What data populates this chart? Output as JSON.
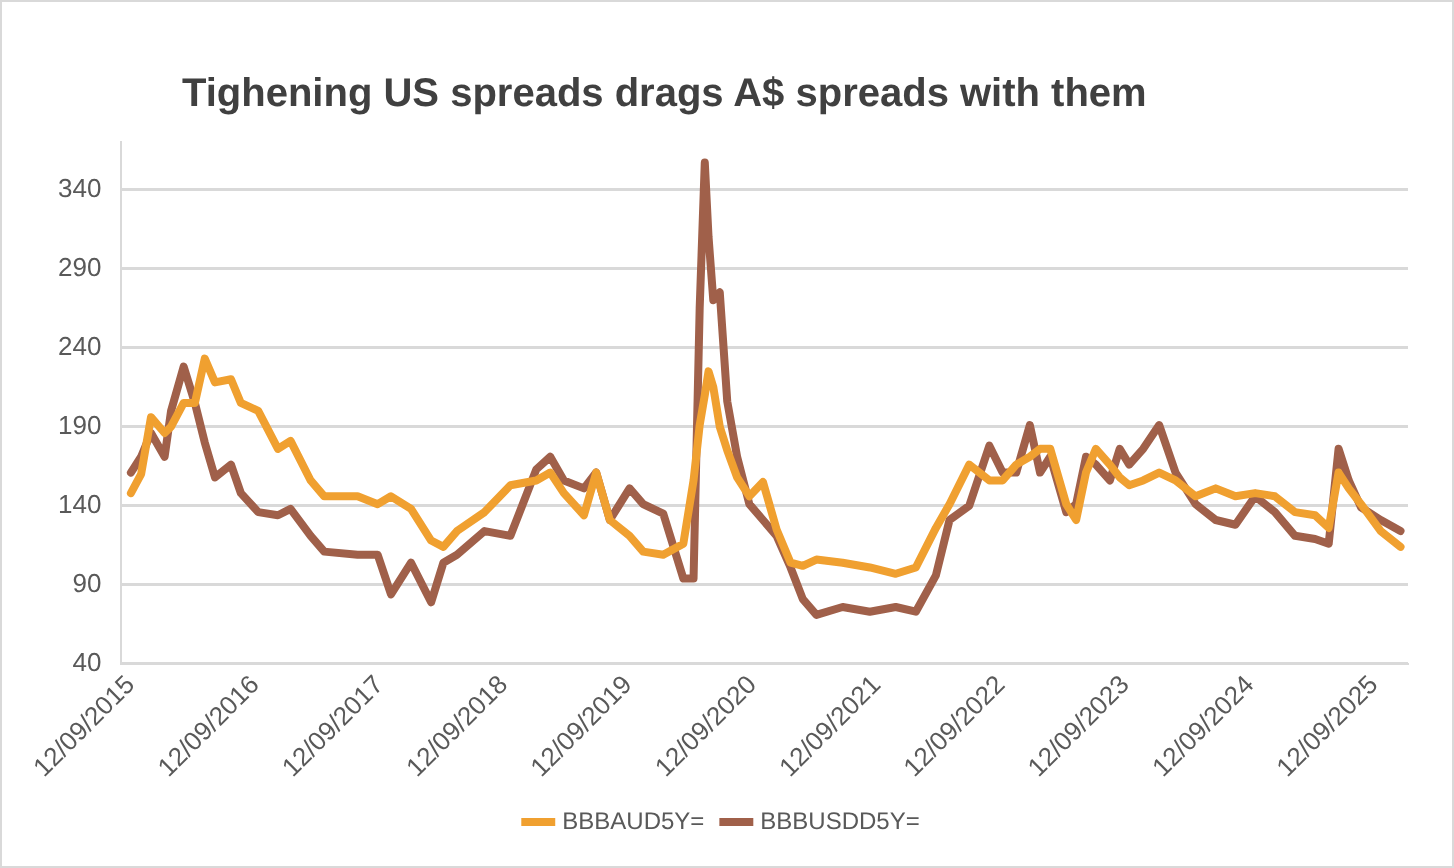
{
  "chart_data": {
    "type": "line",
    "title": "Tighening US spreads drags A$ spreads with them",
    "x": [
      "2015-09-12",
      "2015-10-12",
      "2015-11-10",
      "2015-12-20",
      "2016-01-08",
      "2016-02-14",
      "2016-03-18",
      "2016-04-16",
      "2016-05-16",
      "2016-07-02",
      "2016-07-31",
      "2016-09-20",
      "2016-11-17",
      "2016-12-24",
      "2017-02-21",
      "2017-04-02",
      "2017-07-09",
      "2017-09-06",
      "2017-10-15",
      "2017-12-13",
      "2018-02-10",
      "2018-03-18",
      "2018-04-27",
      "2018-07-17",
      "2018-10-01",
      "2018-12-16",
      "2019-01-26",
      "2019-03-07",
      "2019-05-05",
      "2019-06-10",
      "2019-07-20",
      "2019-09-16",
      "2019-10-26",
      "2019-12-24",
      "2020-02-21",
      "2020-03-22",
      "2020-04-09",
      "2020-04-24",
      "2020-05-05",
      "2020-05-19",
      "2020-06-07",
      "2020-06-29",
      "2020-07-28",
      "2020-09-02",
      "2020-10-12",
      "2020-11-21",
      "2021-01-01",
      "2021-02-06",
      "2021-03-18",
      "2021-06-03",
      "2021-08-22",
      "2021-11-06",
      "2022-01-04",
      "2022-03-04",
      "2022-04-13",
      "2022-06-10",
      "2022-08-08",
      "2022-09-16",
      "2022-10-26",
      "2022-12-05",
      "2023-01-04",
      "2023-02-03",
      "2023-03-22",
      "2023-04-20",
      "2023-05-19",
      "2023-06-17",
      "2023-07-28",
      "2023-08-26",
      "2023-09-23",
      "2023-11-03",
      "2023-12-20",
      "2024-02-06",
      "2024-04-05",
      "2024-06-03",
      "2024-07-31",
      "2024-09-27",
      "2024-11-24",
      "2025-01-22",
      "2025-03-22",
      "2025-05-01",
      "2025-05-30",
      "2025-06-29",
      "2025-08-04",
      "2025-10-01",
      "2025-11-28"
    ],
    "series": [
      {
        "name": "BBBAUD5Y=",
        "color": "#f0a030",
        "values": [
          148,
          160,
          196,
          186,
          190,
          205,
          205,
          233,
          218,
          220,
          205,
          200,
          176,
          181,
          156,
          146,
          146,
          141,
          146,
          138,
          118,
          114,
          124,
          136,
          153,
          156,
          161,
          148,
          134,
          161,
          131,
          121,
          111,
          109,
          116,
          156,
          191,
          210,
          225,
          215,
          190,
          175,
          158,
          146,
          155,
          125,
          104,
          102,
          106,
          104,
          101,
          97,
          101,
          126,
          141,
          166,
          156,
          156,
          166,
          171,
          176,
          176,
          141,
          131,
          161,
          176,
          166,
          158,
          153,
          156,
          161,
          156,
          146,
          151,
          146,
          148,
          146,
          136,
          134,
          126,
          161,
          151,
          141,
          124,
          114
        ]
      },
      {
        "name": "BBBUSDD5Y=",
        "color": "#a0604a",
        "values": [
          161,
          171,
          186,
          171,
          200,
          228,
          205,
          180,
          158,
          166,
          148,
          136,
          134,
          138,
          121,
          111,
          109,
          109,
          84,
          104,
          79,
          104,
          109,
          124,
          121,
          163,
          171,
          156,
          151,
          161,
          131,
          151,
          141,
          135,
          94,
          94,
          265,
          357,
          310,
          270,
          275,
          206,
          171,
          141,
          131,
          121,
          101,
          81,
          71,
          76,
          73,
          76,
          73,
          96,
          131,
          140,
          178,
          161,
          161,
          191,
          161,
          171,
          136,
          141,
          171,
          166,
          156,
          176,
          166,
          176,
          191,
          161,
          141,
          131,
          128,
          146,
          136,
          121,
          119,
          116,
          176,
          156,
          139,
          131,
          124
        ]
      }
    ],
    "xlim": [
      "2015-08-15",
      "2025-12-20"
    ],
    "xticks": [
      {
        "value": "2015-09-12",
        "label": "12/09/2015"
      },
      {
        "value": "2016-09-12",
        "label": "12/09/2016"
      },
      {
        "value": "2017-09-12",
        "label": "12/09/2017"
      },
      {
        "value": "2018-09-12",
        "label": "12/09/2018"
      },
      {
        "value": "2019-09-12",
        "label": "12/09/2019"
      },
      {
        "value": "2020-09-12",
        "label": "12/09/2020"
      },
      {
        "value": "2021-09-12",
        "label": "12/09/2021"
      },
      {
        "value": "2022-09-12",
        "label": "12/09/2022"
      },
      {
        "value": "2023-09-12",
        "label": "12/09/2023"
      },
      {
        "value": "2024-09-12",
        "label": "12/09/2024"
      },
      {
        "value": "2025-09-12",
        "label": "12/09/2025"
      }
    ],
    "ylim": [
      40,
      370
    ],
    "yticks": [
      40,
      90,
      140,
      190,
      240,
      290,
      340
    ],
    "grid": "y",
    "legend": "bottom",
    "marker": "none",
    "line_style": "solid"
  }
}
